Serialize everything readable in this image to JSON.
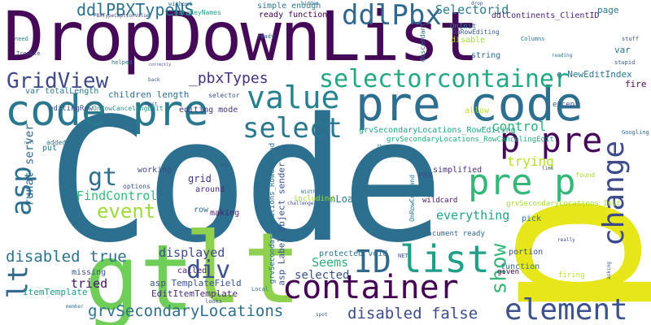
{
  "words": [
    {
      "text": "Code",
      "color": "#2c6f8e"
    },
    {
      "text": "DropDownList",
      "color": "#440a57"
    },
    {
      "text": "p",
      "color": "#e6e61a"
    },
    {
      "text": "lt",
      "color": "#8fd14f"
    },
    {
      "text": "gt",
      "color": "#6ece58"
    },
    {
      "text": "code pre",
      "color": "#2a788e"
    },
    {
      "text": "pre code",
      "color": "#2c6f8e"
    },
    {
      "text": "container",
      "color": "#440154"
    },
    {
      "text": "element",
      "color": "#3b528b"
    },
    {
      "text": "p pre",
      "color": "#440a57"
    },
    {
      "text": "pre p",
      "color": "#35b779"
    },
    {
      "text": "change",
      "color": "#3e4a89"
    },
    {
      "text": "list",
      "color": "#1f9e89"
    },
    {
      "text": "ID",
      "color": "#31688e"
    },
    {
      "text": "asp",
      "color": "#2d708e"
    },
    {
      "text": "value",
      "color": "#26828e"
    },
    {
      "text": "select",
      "color": "#2a788e"
    },
    {
      "text": "selectorcontainer",
      "color": "#22a884"
    },
    {
      "text": "GridView",
      "color": "#3e4a89"
    },
    {
      "text": "ddlPbx",
      "color": "#31688e"
    },
    {
      "text": "ddlPBXTypeNS",
      "color": "#2c728e"
    },
    {
      "text": "_pbxTypes",
      "color": "#46327e"
    },
    {
      "text": "event",
      "color": "#a0da39"
    },
    {
      "text": "gt",
      "color": "#2d708e"
    },
    {
      "text": "div",
      "color": "#3b528b"
    },
    {
      "text": "lt",
      "color": "#31688e"
    },
    {
      "text": "disabled true",
      "color": "#2c728e"
    },
    {
      "text": "grvSecondaryLocations",
      "color": "#2d708e"
    },
    {
      "text": "disabled false",
      "color": "#3e4a89"
    },
    {
      "text": "show",
      "color": "#35b779"
    },
    {
      "text": "control",
      "color": "#29af7f"
    },
    {
      "text": "trying",
      "color": "#b5de2b"
    },
    {
      "text": "selected",
      "color": "#3b528b"
    },
    {
      "text": "displayed",
      "color": "#3e4a89"
    },
    {
      "text": "Seems",
      "color": "#2db27d"
    },
    {
      "text": "everything",
      "color": "#20a386"
    },
    {
      "text": "FindControl",
      "color": "#35b779"
    },
    {
      "text": "tried",
      "color": "#471365"
    },
    {
      "text": "runat server",
      "color": "#31688e"
    },
    {
      "text": "Selectorid",
      "color": "#277f8e"
    },
    {
      "text": "e NewEditIndex",
      "color": "#2c728e"
    },
    {
      "text": "OnLoad",
      "color": "#2a788e"
    },
    {
      "text": "asp TemplateField",
      "color": "#3b528b"
    },
    {
      "text": "EditItemTemplate",
      "color": "#472d7b"
    },
    {
      "text": "ItemTemplate",
      "color": "#1f9a8a"
    },
    {
      "text": "ddlContinents_ClientID",
      "color": "#482475"
    },
    {
      "text": "protected void",
      "color": "#2c728e"
    },
    {
      "text": "asp Label object sender",
      "color": "#3b528b"
    },
    {
      "text": "grvSecondaryLocations_RowEditing",
      "color": "#20a386"
    },
    {
      "text": "grvSecondaryLocations_RowCommand",
      "color": "#2e6e8e"
    },
    {
      "text": "grvSecondaryLocations_RowCancelingEdit",
      "color": "#22a884"
    },
    {
      "text": "OnRowCancelingEdit",
      "color": "#1f948c"
    },
    {
      "text": "editingRow",
      "color": "#3b528b"
    },
    {
      "text": "editing mode",
      "color": "#46327e"
    },
    {
      "text": "children length",
      "color": "#2c728e"
    },
    {
      "text": "var totalLength",
      "color": "#2a788e"
    },
    {
      "text": "PBXTypeCaptionValue",
      "color": "#3e4a89"
    },
    {
      "text": "DataKeyNames",
      "color": "#1f9e89"
    },
    {
      "text": "simple enough",
      "color": "#2a788e"
    },
    {
      "text": "ready function",
      "color": "#440154"
    },
    {
      "text": "document ready",
      "color": "#31688e"
    },
    {
      "text": "function",
      "color": "#2d708e"
    },
    {
      "text": "portion",
      "color": "#38588c"
    },
    {
      "text": "page",
      "color": "#2d708e"
    },
    {
      "text": "var",
      "color": "#2a788e"
    },
    {
      "text": "fire",
      "color": "#440a57"
    },
    {
      "text": "working",
      "color": "#3e4a89"
    },
    {
      "text": "grid",
      "color": "#46327e"
    },
    {
      "text": "row",
      "color": "#31688e"
    },
    {
      "text": "making",
      "color": "#481d6f"
    },
    {
      "text": "around",
      "color": "#472d7b"
    },
    {
      "text": "called",
      "color": "#481a6c"
    },
    {
      "text": "missing",
      "color": "#3b528b"
    },
    {
      "text": "put",
      "color": "#2a788e"
    },
    {
      "text": "added",
      "color": "#2a788e"
    },
    {
      "text": "options",
      "color": "#3b528b"
    },
    {
      "text": "PBX",
      "color": "#3b528b"
    },
    {
      "text": "simplified",
      "color": "#472d7b"
    },
    {
      "text": "string",
      "color": "#31688e"
    },
    {
      "text": "disable",
      "color": "#a0da39"
    },
    {
      "text": "allow",
      "color": "#bade28"
    },
    {
      "text": "selector",
      "color": "#3b528b"
    },
    {
      "text": "OnInit",
      "color": "#2a788e"
    },
    {
      "text": "OnRowEditing",
      "color": "#38588c"
    },
    {
      "text": "OnRowCommand",
      "color": "#2a788e"
    },
    {
      "text": "grvSecondaryLocations_Init",
      "color": "#a5db36"
    },
    {
      "text": "wildcard",
      "color": "#471365"
    },
    {
      "text": "pick",
      "color": "#2c728e"
    },
    {
      "text": "given",
      "color": "#440154"
    },
    {
      "text": "firing",
      "color": "#b5de2b"
    },
    {
      "text": "except",
      "color": "#3b528b"
    },
    {
      "text": "Columns",
      "color": "#2a788e"
    },
    {
      "text": "descendant",
      "color": "#31688e"
    },
    {
      "text": "Trouble",
      "color": "#3b528b"
    },
    {
      "text": "helped",
      "color": "#2d708e"
    },
    {
      "text": "without",
      "color": "#2c728e"
    },
    {
      "text": "ready",
      "color": "#31688e"
    },
    {
      "text": "found",
      "color": "#a0da39"
    },
    {
      "text": "NET",
      "color": "#3b528b"
    },
    {
      "text": "really",
      "color": "#3e4a89"
    },
    {
      "text": "stuff",
      "color": "#3b528b"
    },
    {
      "text": "stupid",
      "color": "#3b528b"
    },
    {
      "text": "reading",
      "color": "#2a788e"
    },
    {
      "text": "Googling",
      "color": "#31688e"
    },
    {
      "text": "thought",
      "color": "#2a788e"
    },
    {
      "text": "looks",
      "color": "#3b528b"
    },
    {
      "text": "Local",
      "color": "#2a788e"
    },
    {
      "text": "spot",
      "color": "#3b528b"
    },
    {
      "text": "member",
      "color": "#2a788e"
    },
    {
      "text": "need",
      "color": "#2a788e"
    },
    {
      "text": "back",
      "color": "#3b528b"
    },
    {
      "text": "Must",
      "color": "#3b528b"
    },
    {
      "text": "hidden",
      "color": "#2d708e"
    },
    {
      "text": "challenge",
      "color": "#3e4a89"
    },
    {
      "text": "including",
      "color": "#a0da39"
    },
    {
      "text": "link",
      "color": "#3b528b"
    },
    {
      "text": "Width",
      "color": "#2a788e"
    },
    {
      "text": "drop",
      "color": "#3b528b"
    },
    {
      "text": "asking",
      "color": "#3b528b"
    },
    {
      "text": "null",
      "color": "#2a788e"
    },
    {
      "text": "correctly",
      "color": "#3e4a89"
    },
    {
      "text": "Now",
      "color": "#3b528b"
    }
  ]
}
